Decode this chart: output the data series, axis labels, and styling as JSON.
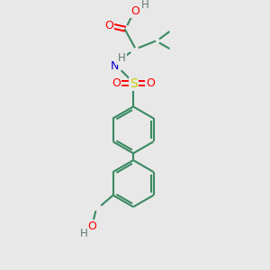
{
  "bg_color": "#e8e8e8",
  "bond_color": "#3a8a62",
  "atom_colors": {
    "O": "#ff0000",
    "N": "#0000cc",
    "S": "#cccc00",
    "H": "#607878",
    "C": "#3a8a62"
  },
  "fig_size": [
    3.0,
    3.0
  ],
  "dpi": 100
}
